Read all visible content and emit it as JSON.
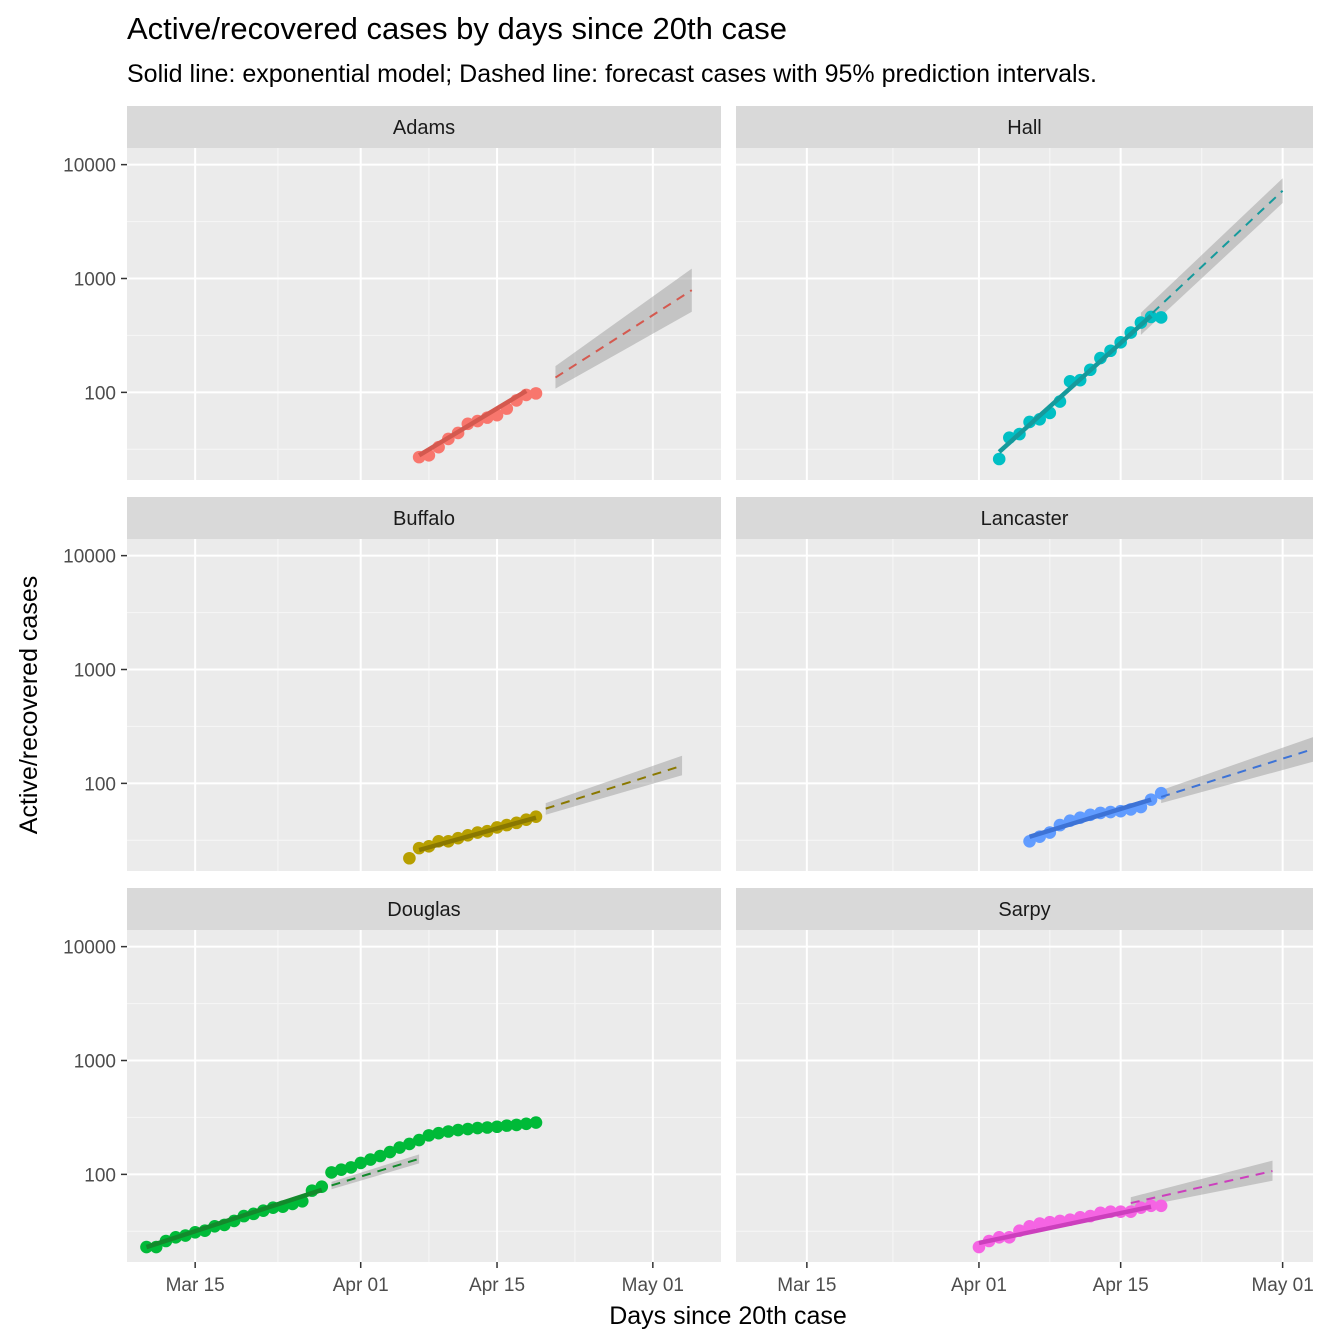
{
  "title": "Active/recovered cases by days since 20th case",
  "subtitle": "Solid line: exponential model; Dashed line: forecast cases with 95% prediction intervals.",
  "chart_data": {
    "type": "scatter",
    "facet_layout": "3 rows x 2 columns",
    "xlabel": "Days since 20th case",
    "ylabel": "Active/recovered cases",
    "y_scale": "log10",
    "y_ticks": [
      100,
      1000,
      10000
    ],
    "y_tick_labels": [
      "100",
      "1000",
      "10000"
    ],
    "x_ticks": [
      "2020-03-15",
      "2020-04-01",
      "2020-04-15",
      "2020-05-01"
    ],
    "x_tick_labels": [
      "Mar 15",
      "Apr 01",
      "Apr 15",
      "May 01"
    ],
    "grid": true,
    "legend": "none",
    "panels": [
      {
        "name": "Adams",
        "color": "#F8766D",
        "line_color": "#d4594f",
        "x_range": [
          "2020-03-08",
          "2020-05-08"
        ],
        "y_range": [
          17,
          14000
        ],
        "dates": [
          "2020-04-07",
          "2020-04-08",
          "2020-04-09",
          "2020-04-10",
          "2020-04-11",
          "2020-04-12",
          "2020-04-13",
          "2020-04-14",
          "2020-04-15",
          "2020-04-16",
          "2020-04-17",
          "2020-04-18",
          "2020-04-19"
        ],
        "values": [
          27,
          28,
          33,
          39,
          44,
          53,
          56,
          60,
          63,
          72,
          85,
          95,
          98
        ],
        "fit": {
          "start": "2020-04-07",
          "end": "2020-04-18",
          "y0": 28,
          "y1": 103
        },
        "forecast": {
          "start": "2020-04-21",
          "end": "2020-05-05",
          "y0": 135,
          "y1": 790,
          "lo0": 108,
          "lo1": 510,
          "hi0": 170,
          "hi1": 1220
        }
      },
      {
        "name": "Hall",
        "color": "#00BFC4",
        "line_color": "#159a9c",
        "x_range": [
          "2020-03-08",
          "2020-05-04"
        ],
        "y_range": [
          17,
          14000
        ],
        "dates": [
          "2020-04-03",
          "2020-04-04",
          "2020-04-05",
          "2020-04-06",
          "2020-04-07",
          "2020-04-08",
          "2020-04-09",
          "2020-04-10",
          "2020-04-11",
          "2020-04-12",
          "2020-04-13",
          "2020-04-14",
          "2020-04-15",
          "2020-04-16",
          "2020-04-17",
          "2020-04-18",
          "2020-04-19"
        ],
        "values": [
          26,
          40,
          43,
          55,
          58,
          66,
          83,
          125,
          128,
          158,
          200,
          232,
          275,
          335,
          410,
          460,
          455
        ],
        "fit": {
          "start": "2020-04-03",
          "end": "2020-04-18",
          "y0": 30,
          "y1": 470
        },
        "forecast": {
          "start": "2020-04-17",
          "end": "2020-05-01",
          "y0": 400,
          "y1": 5900,
          "lo0": 320,
          "lo1": 4600,
          "hi0": 500,
          "hi1": 7600
        }
      },
      {
        "name": "Buffalo",
        "color": "#B79F00",
        "line_color": "#8a7800",
        "x_range": [
          "2020-03-08",
          "2020-05-08"
        ],
        "y_range": [
          17,
          14000
        ],
        "dates": [
          "2020-04-06",
          "2020-04-07",
          "2020-04-08",
          "2020-04-09",
          "2020-04-10",
          "2020-04-11",
          "2020-04-12",
          "2020-04-13",
          "2020-04-14",
          "2020-04-15",
          "2020-04-16",
          "2020-04-17",
          "2020-04-18",
          "2020-04-19"
        ],
        "values": [
          22,
          27,
          28,
          31,
          31,
          33,
          35,
          37,
          38,
          41,
          43,
          45,
          48,
          51
        ],
        "fit": {
          "start": "2020-04-07",
          "end": "2020-04-19",
          "y0": 26,
          "y1": 50
        },
        "forecast": {
          "start": "2020-04-20",
          "end": "2020-05-04",
          "y0": 60,
          "y1": 143,
          "lo0": 53,
          "lo1": 118,
          "hi0": 67,
          "hi1": 175
        }
      },
      {
        "name": "Lancaster",
        "color": "#619CFF",
        "line_color": "#3d73d6",
        "x_range": [
          "2020-03-08",
          "2020-05-04"
        ],
        "y_range": [
          17,
          14000
        ],
        "dates": [
          "2020-04-06",
          "2020-04-07",
          "2020-04-08",
          "2020-04-09",
          "2020-04-10",
          "2020-04-11",
          "2020-04-12",
          "2020-04-13",
          "2020-04-14",
          "2020-04-15",
          "2020-04-16",
          "2020-04-17",
          "2020-04-18",
          "2020-04-19"
        ],
        "values": [
          31,
          34,
          37,
          43,
          47,
          50,
          53,
          55,
          56,
          57,
          59,
          62,
          72,
          82
        ],
        "fit": {
          "start": "2020-04-06",
          "end": "2020-04-18",
          "y0": 34,
          "y1": 72
        },
        "forecast": {
          "start": "2020-04-19",
          "end": "2020-05-04",
          "y0": 76,
          "y1": 200,
          "lo0": 67,
          "lo1": 155,
          "hi0": 87,
          "hi1": 255
        }
      },
      {
        "name": "Douglas",
        "color": "#00BA38",
        "line_color": "#138a2c",
        "x_range": [
          "2020-03-08",
          "2020-05-08"
        ],
        "y_range": [
          17,
          14000
        ],
        "dates": [
          "2020-03-10",
          "2020-03-11",
          "2020-03-12",
          "2020-03-13",
          "2020-03-14",
          "2020-03-15",
          "2020-03-16",
          "2020-03-17",
          "2020-03-18",
          "2020-03-19",
          "2020-03-20",
          "2020-03-21",
          "2020-03-22",
          "2020-03-23",
          "2020-03-24",
          "2020-03-25",
          "2020-03-26",
          "2020-03-27",
          "2020-03-28",
          "2020-03-29",
          "2020-03-30",
          "2020-03-31",
          "2020-04-01",
          "2020-04-02",
          "2020-04-03",
          "2020-04-04",
          "2020-04-05",
          "2020-04-06",
          "2020-04-07",
          "2020-04-08",
          "2020-04-09",
          "2020-04-10",
          "2020-04-11",
          "2020-04-12",
          "2020-04-13",
          "2020-04-14",
          "2020-04-15",
          "2020-04-16",
          "2020-04-17",
          "2020-04-18",
          "2020-04-19"
        ],
        "values": [
          23,
          23,
          26,
          28,
          29,
          31,
          32,
          35,
          36,
          39,
          43,
          45,
          48,
          51,
          52,
          55,
          58,
          72,
          78,
          104,
          110,
          115,
          126,
          135,
          145,
          157,
          172,
          185,
          200,
          220,
          230,
          238,
          245,
          250,
          255,
          258,
          262,
          268,
          272,
          278,
          285
        ],
        "fit": {
          "start": "2020-03-10",
          "end": "2020-03-28",
          "y0": 23,
          "y1": 73
        },
        "forecast": {
          "start": "2020-03-29",
          "end": "2020-04-07",
          "y0": 80,
          "y1": 137,
          "lo0": 74,
          "lo1": 125,
          "hi0": 86,
          "hi1": 150
        }
      },
      {
        "name": "Sarpy",
        "color": "#F564E3",
        "line_color": "#cc3fbd",
        "x_range": [
          "2020-03-08",
          "2020-05-04"
        ],
        "y_range": [
          17,
          14000
        ],
        "dates": [
          "2020-04-01",
          "2020-04-02",
          "2020-04-03",
          "2020-04-04",
          "2020-04-05",
          "2020-04-06",
          "2020-04-07",
          "2020-04-08",
          "2020-04-09",
          "2020-04-10",
          "2020-04-11",
          "2020-04-12",
          "2020-04-13",
          "2020-04-14",
          "2020-04-15",
          "2020-04-16",
          "2020-04-17",
          "2020-04-18",
          "2020-04-19"
        ],
        "values": [
          23,
          26,
          28,
          28,
          32,
          35,
          37,
          38,
          39,
          40,
          42,
          43,
          46,
          47,
          47,
          47,
          51,
          53,
          53
        ],
        "fit": {
          "start": "2020-04-01",
          "end": "2020-04-18",
          "y0": 25,
          "y1": 52
        },
        "forecast": {
          "start": "2020-04-16",
          "end": "2020-04-30",
          "y0": 56,
          "y1": 107,
          "lo0": 50,
          "lo1": 88,
          "hi0": 63,
          "hi1": 132
        }
      }
    ]
  }
}
